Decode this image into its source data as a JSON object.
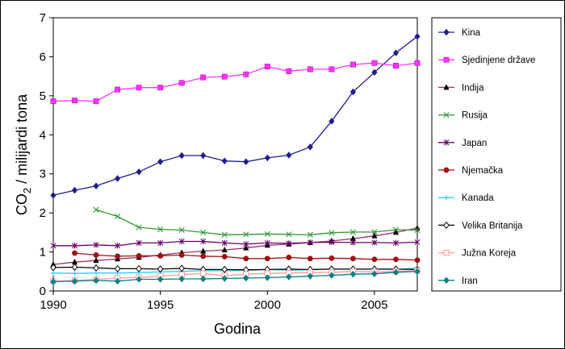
{
  "chart_data": {
    "type": "line",
    "xlabel": "Godina",
    "ylabel": "CO2 / milijardi tona",
    "ylabel_main": "CO",
    "ylabel_sub": "2",
    "ylabel_rest": " / milijardi tona",
    "xlim": [
      1990,
      2007
    ],
    "ylim": [
      0,
      7
    ],
    "xticks": [
      1990,
      1995,
      2000,
      2005
    ],
    "yticks": [
      0,
      1,
      2,
      3,
      4,
      5,
      6,
      7
    ],
    "grid": false,
    "legend_position": "right",
    "series": [
      {
        "name": "Kina",
        "color": "#1f1f8c",
        "marker": "diamond",
        "x": [
          1990,
          1991,
          1992,
          1993,
          1994,
          1995,
          1996,
          1997,
          1998,
          1999,
          2000,
          2001,
          2002,
          2003,
          2004,
          2005,
          2006,
          2007
        ],
        "y": [
          2.45,
          2.58,
          2.69,
          2.88,
          3.05,
          3.31,
          3.47,
          3.47,
          3.33,
          3.31,
          3.41,
          3.48,
          3.69,
          4.35,
          5.1,
          5.6,
          6.1,
          6.52
        ]
      },
      {
        "name": "Sjedinjene države",
        "color": "#ff33ff",
        "marker": "square",
        "x": [
          1990,
          1991,
          1992,
          1993,
          1994,
          1995,
          1996,
          1997,
          1998,
          1999,
          2000,
          2001,
          2002,
          2003,
          2004,
          2005,
          2006,
          2007
        ],
        "y": [
          4.86,
          4.88,
          4.86,
          5.16,
          5.21,
          5.21,
          5.33,
          5.47,
          5.49,
          5.55,
          5.75,
          5.63,
          5.68,
          5.68,
          5.8,
          5.84,
          5.77,
          5.84
        ]
      },
      {
        "name": "Indija",
        "color": "#993366",
        "marker": "triangle",
        "x": [
          1990,
          1991,
          1992,
          1993,
          1994,
          1995,
          1996,
          1997,
          1998,
          1999,
          2000,
          2001,
          2002,
          2003,
          2004,
          2005,
          2006,
          2007
        ],
        "y": [
          0.68,
          0.74,
          0.78,
          0.82,
          0.86,
          0.92,
          0.98,
          1.02,
          1.05,
          1.1,
          1.17,
          1.2,
          1.24,
          1.28,
          1.34,
          1.41,
          1.5,
          1.61
        ]
      },
      {
        "name": "Rusija",
        "color": "#339933",
        "marker": "x",
        "x": [
          1992,
          1993,
          1994,
          1995,
          1996,
          1997,
          1998,
          1999,
          2000,
          2001,
          2002,
          2003,
          2004,
          2005,
          2006,
          2007
        ],
        "y": [
          2.08,
          1.91,
          1.63,
          1.58,
          1.56,
          1.5,
          1.44,
          1.45,
          1.46,
          1.45,
          1.44,
          1.49,
          1.51,
          1.51,
          1.57,
          1.56
        ]
      },
      {
        "name": "Japan",
        "color": "#660066",
        "marker": "star",
        "x": [
          1990,
          1991,
          1992,
          1993,
          1994,
          1995,
          1996,
          1997,
          1998,
          1999,
          2000,
          2001,
          2002,
          2003,
          2004,
          2005,
          2006,
          2007
        ],
        "y": [
          1.16,
          1.16,
          1.18,
          1.16,
          1.23,
          1.23,
          1.27,
          1.27,
          1.23,
          1.2,
          1.23,
          1.22,
          1.24,
          1.25,
          1.24,
          1.24,
          1.23,
          1.25
        ]
      },
      {
        "name": "Njemačka",
        "color": "#a01010",
        "marker": "circle",
        "x": [
          1991,
          1992,
          1993,
          1994,
          1995,
          1996,
          1997,
          1998,
          1999,
          2000,
          2001,
          2002,
          2003,
          2004,
          2005,
          2006,
          2007
        ],
        "y": [
          0.97,
          0.92,
          0.89,
          0.9,
          0.9,
          0.92,
          0.89,
          0.88,
          0.83,
          0.83,
          0.86,
          0.83,
          0.84,
          0.83,
          0.81,
          0.81,
          0.79
        ]
      },
      {
        "name": "Kanada",
        "color": "#33ccff",
        "marker": "plus",
        "x": [
          1990,
          1991,
          1992,
          1993,
          1994,
          1995,
          1996,
          1997,
          1998,
          1999,
          2000,
          2001,
          2002,
          2003,
          2004,
          2005,
          2006,
          2007
        ],
        "y": [
          0.46,
          0.45,
          0.46,
          0.46,
          0.47,
          0.49,
          0.5,
          0.52,
          0.52,
          0.53,
          0.55,
          0.53,
          0.54,
          0.56,
          0.56,
          0.56,
          0.55,
          0.59
        ]
      },
      {
        "name": "Velika Britanija",
        "color": "#000000",
        "marker": "diamond-open",
        "x": [
          1990,
          1991,
          1992,
          1993,
          1994,
          1995,
          1996,
          1997,
          1998,
          1999,
          2000,
          2001,
          2002,
          2003,
          2004,
          2005,
          2006,
          2007
        ],
        "y": [
          0.6,
          0.61,
          0.59,
          0.57,
          0.57,
          0.56,
          0.58,
          0.55,
          0.55,
          0.54,
          0.55,
          0.56,
          0.55,
          0.56,
          0.56,
          0.56,
          0.56,
          0.55
        ]
      },
      {
        "name": "Južna Koreja",
        "color": "#ff9999",
        "marker": "square-open",
        "x": [
          1990,
          1991,
          1992,
          1993,
          1994,
          1995,
          1996,
          1997,
          1998,
          1999,
          2000,
          2001,
          2002,
          2003,
          2004,
          2005,
          2006,
          2007
        ],
        "y": [
          0.25,
          0.27,
          0.3,
          0.33,
          0.35,
          0.38,
          0.42,
          0.45,
          0.39,
          0.43,
          0.45,
          0.46,
          0.47,
          0.48,
          0.5,
          0.49,
          0.5,
          0.52
        ]
      },
      {
        "name": "Iran",
        "color": "#008080",
        "marker": "diamond",
        "x": [
          1990,
          1991,
          1992,
          1993,
          1994,
          1995,
          1996,
          1997,
          1998,
          1999,
          2000,
          2001,
          2002,
          2003,
          2004,
          2005,
          2006,
          2007
        ],
        "y": [
          0.24,
          0.25,
          0.27,
          0.25,
          0.3,
          0.3,
          0.31,
          0.31,
          0.32,
          0.33,
          0.34,
          0.36,
          0.38,
          0.4,
          0.43,
          0.44,
          0.48,
          0.5
        ]
      }
    ]
  }
}
